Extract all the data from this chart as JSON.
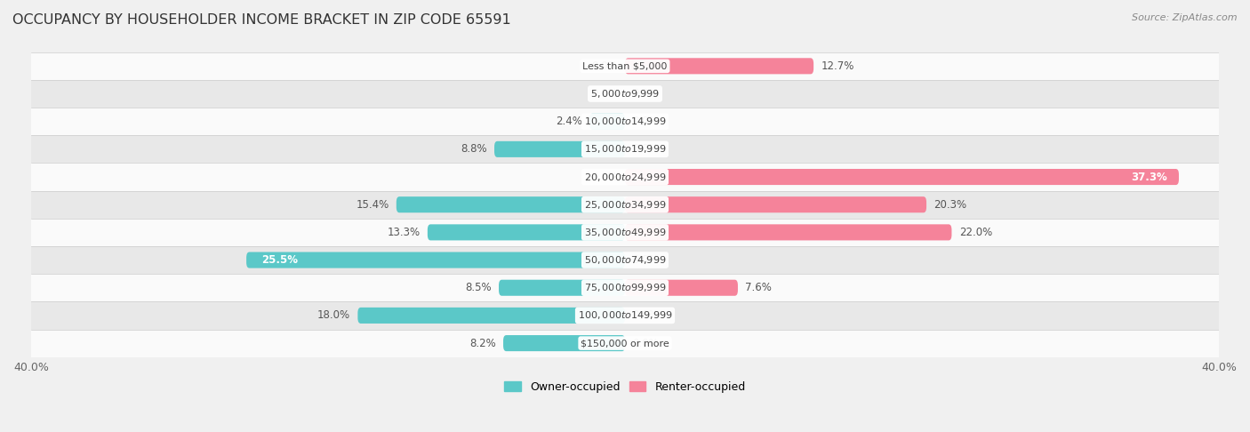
{
  "title": "OCCUPANCY BY HOUSEHOLDER INCOME BRACKET IN ZIP CODE 65591",
  "source": "Source: ZipAtlas.com",
  "categories": [
    "Less than $5,000",
    "$5,000 to $9,999",
    "$10,000 to $14,999",
    "$15,000 to $19,999",
    "$20,000 to $24,999",
    "$25,000 to $34,999",
    "$35,000 to $49,999",
    "$50,000 to $74,999",
    "$75,000 to $99,999",
    "$100,000 to $149,999",
    "$150,000 or more"
  ],
  "owner_occupied": [
    0.0,
    0.0,
    2.4,
    8.8,
    0.0,
    15.4,
    13.3,
    25.5,
    8.5,
    18.0,
    8.2
  ],
  "renter_occupied": [
    12.7,
    0.0,
    0.0,
    0.0,
    37.3,
    20.3,
    22.0,
    0.0,
    7.6,
    0.0,
    0.0
  ],
  "owner_color": "#5bc8c8",
  "renter_color": "#f5839a",
  "axis_limit": 40.0,
  "bar_height": 0.58,
  "background_color": "#f0f0f0",
  "row_bg_light": "#fafafa",
  "row_bg_dark": "#e8e8e8",
  "title_fontsize": 11.5,
  "label_fontsize": 8.5,
  "category_fontsize": 8.0,
  "axis_label_fontsize": 9,
  "legend_fontsize": 9,
  "source_fontsize": 8
}
